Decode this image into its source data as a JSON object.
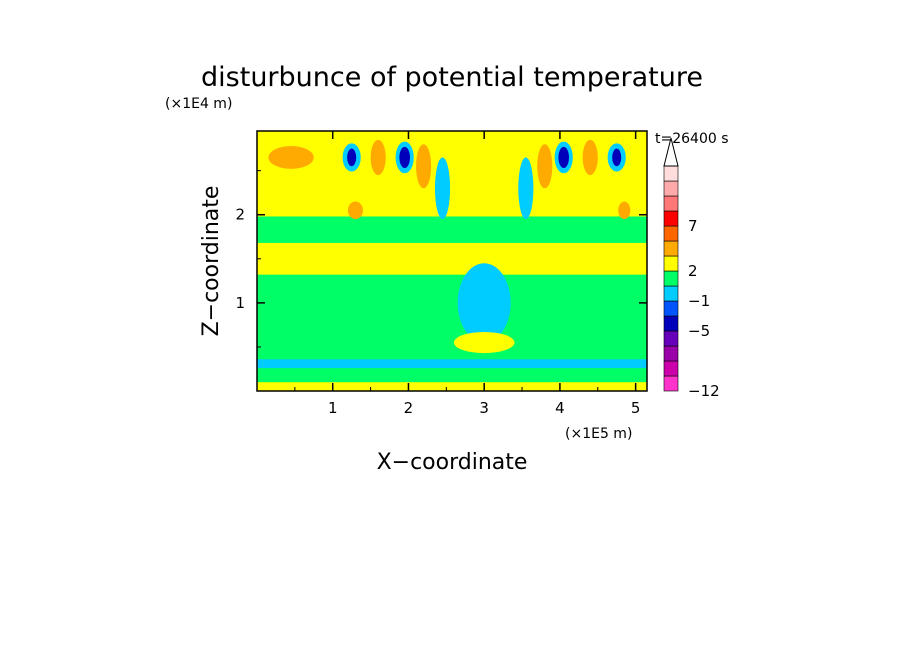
{
  "chart_data": {
    "type": "heatmap",
    "title": "disturbunce of potential temperature",
    "y_scale_label": "(×1E4 m)",
    "x_scale_label": "(×1E5 m)",
    "xlabel": "X−coordinate",
    "ylabel": "Z−coordinate",
    "time_label": "t=26400 s",
    "xlim": [
      0,
      5.15
    ],
    "ylim": [
      0,
      2.95
    ],
    "x_ticks": [
      1,
      2,
      3,
      4,
      5
    ],
    "x_tick_labels": [
      "1",
      "2",
      "3",
      "4",
      "5"
    ],
    "y_ticks": [
      1,
      2
    ],
    "y_tick_labels": [
      "1",
      "2"
    ],
    "colorbar": {
      "colors": [
        "#ff33cc",
        "#cc00aa",
        "#9900aa",
        "#6600bb",
        "#0000bb",
        "#0055ff",
        "#00ccff",
        "#00ff66",
        "#ffff00",
        "#ffaa00",
        "#ff6600",
        "#ff0000",
        "#ff7777",
        "#ffaaaa",
        "#ffdddd"
      ],
      "labels": [
        {
          "text": "−12",
          "index": 0
        },
        {
          "text": "−5",
          "index": 4
        },
        {
          "text": "−1",
          "index": 6
        },
        {
          "text": "2",
          "index": 8
        },
        {
          "text": "7",
          "index": 11
        }
      ],
      "extend": "max"
    },
    "background_level_color": "#00ff66",
    "bands": [
      {
        "y0": 0.0,
        "y1": 0.1,
        "color": "#ffff00"
      },
      {
        "y0": 0.26,
        "y1": 0.36,
        "color": "#00ccff"
      },
      {
        "y0": 1.32,
        "y1": 1.68,
        "color": "#ffff00"
      },
      {
        "y0": 1.98,
        "y1": 2.95,
        "color": "#ffff00"
      }
    ],
    "cells": [
      {
        "x": 0.45,
        "y": 2.65,
        "rx": 0.3,
        "ry": 0.13,
        "color": "#ffaa00"
      },
      {
        "x": 1.25,
        "y": 2.65,
        "rx": 0.12,
        "ry": 0.16,
        "color": "#00ccff"
      },
      {
        "x": 1.25,
        "y": 2.65,
        "rx": 0.06,
        "ry": 0.1,
        "color": "#0000bb"
      },
      {
        "x": 1.6,
        "y": 2.65,
        "rx": 0.1,
        "ry": 0.2,
        "color": "#ffaa00"
      },
      {
        "x": 1.95,
        "y": 2.65,
        "rx": 0.12,
        "ry": 0.18,
        "color": "#00ccff"
      },
      {
        "x": 1.95,
        "y": 2.65,
        "rx": 0.07,
        "ry": 0.12,
        "color": "#0000bb"
      },
      {
        "x": 2.2,
        "y": 2.55,
        "rx": 0.1,
        "ry": 0.25,
        "color": "#ffaa00"
      },
      {
        "x": 2.45,
        "y": 2.3,
        "rx": 0.1,
        "ry": 0.35,
        "color": "#00ccff"
      },
      {
        "x": 3.55,
        "y": 2.3,
        "rx": 0.1,
        "ry": 0.35,
        "color": "#00ccff"
      },
      {
        "x": 3.8,
        "y": 2.55,
        "rx": 0.1,
        "ry": 0.25,
        "color": "#ffaa00"
      },
      {
        "x": 4.05,
        "y": 2.65,
        "rx": 0.12,
        "ry": 0.18,
        "color": "#00ccff"
      },
      {
        "x": 4.05,
        "y": 2.65,
        "rx": 0.07,
        "ry": 0.12,
        "color": "#0000bb"
      },
      {
        "x": 4.4,
        "y": 2.65,
        "rx": 0.1,
        "ry": 0.2,
        "color": "#ffaa00"
      },
      {
        "x": 4.75,
        "y": 2.65,
        "rx": 0.12,
        "ry": 0.16,
        "color": "#00ccff"
      },
      {
        "x": 4.75,
        "y": 2.65,
        "rx": 0.06,
        "ry": 0.1,
        "color": "#0000bb"
      },
      {
        "x": 1.3,
        "y": 2.05,
        "rx": 0.1,
        "ry": 0.1,
        "color": "#ffaa00"
      },
      {
        "x": 4.85,
        "y": 2.05,
        "rx": 0.08,
        "ry": 0.1,
        "color": "#ffaa00"
      },
      {
        "x": 3.0,
        "y": 1.0,
        "rx": 0.35,
        "ry": 0.45,
        "color": "#00ccff"
      },
      {
        "x": 3.0,
        "y": 0.55,
        "rx": 0.4,
        "ry": 0.12,
        "color": "#ffff00"
      }
    ]
  }
}
